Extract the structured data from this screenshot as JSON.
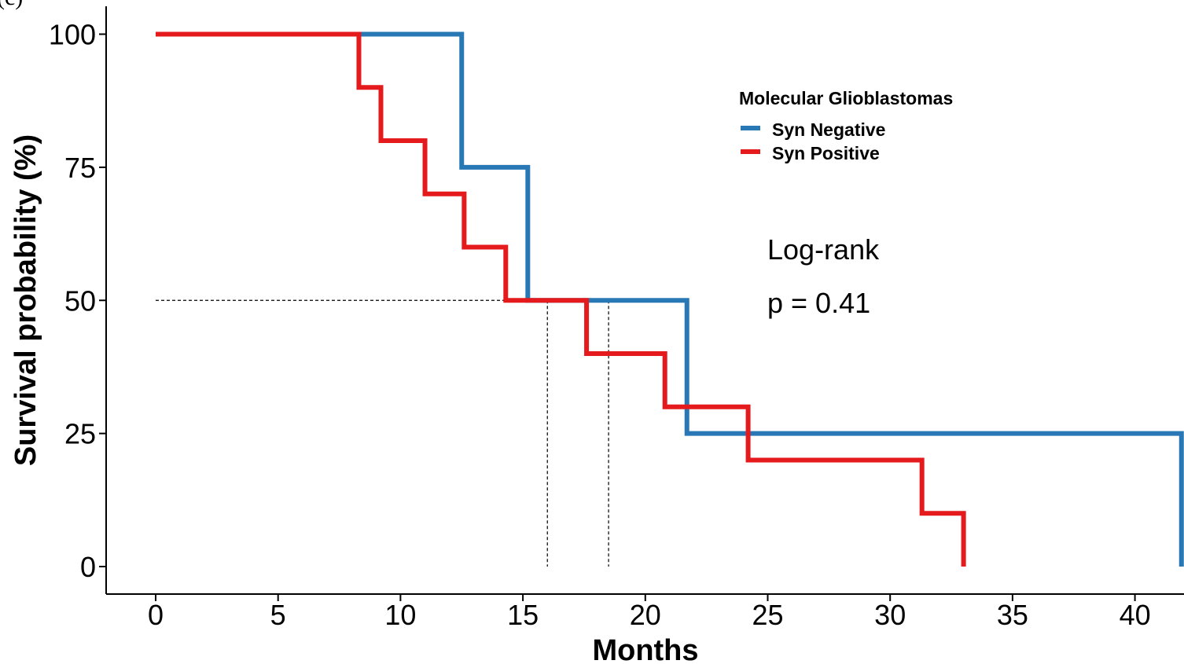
{
  "panel_label": "(c)",
  "chart_data": {
    "type": "line",
    "subtype": "kaplan-meier step",
    "xlabel": "Months",
    "ylabel": "Survival probability (%)",
    "xlim": [
      0,
      42
    ],
    "ylim": [
      0,
      100
    ],
    "x_ticks": [
      0,
      5,
      10,
      15,
      20,
      25,
      30,
      35,
      40
    ],
    "y_ticks": [
      0,
      25,
      50,
      75,
      100
    ],
    "grid": false,
    "legend": {
      "title": "Molecular Glioblastomas",
      "position": "top-right"
    },
    "annotations": [
      "Log-rank",
      "p = 0.41"
    ],
    "median_line": {
      "y": 50,
      "x_medians": [
        16.0,
        18.5
      ]
    },
    "series": [
      {
        "name": "Syn Negative",
        "color": "#2878B5",
        "x": [
          0,
          12.5,
          15.2,
          21.7,
          41.9
        ],
        "y": [
          100,
          75,
          50,
          25,
          0
        ]
      },
      {
        "name": "Syn Positive",
        "color": "#E41A1C",
        "x": [
          0,
          8.3,
          9.2,
          11.0,
          12.6,
          14.3,
          17.6,
          20.8,
          24.2,
          31.3,
          33.0
        ],
        "y": [
          100,
          90,
          80,
          70,
          60,
          50,
          40,
          30,
          20,
          10,
          0
        ]
      }
    ]
  }
}
